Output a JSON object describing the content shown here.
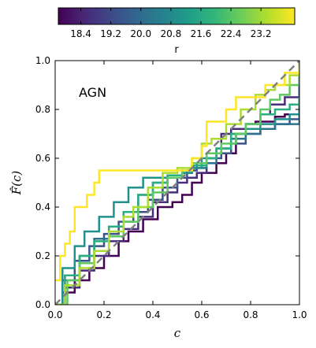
{
  "chart_data": {
    "type": "line",
    "annotation": "AGN",
    "xlabel": "c",
    "ylabel": "F̂(c)",
    "xlim": [
      0.0,
      1.0
    ],
    "ylim": [
      0.0,
      1.0
    ],
    "xticks": [
      "0.0",
      "0.2",
      "0.4",
      "0.6",
      "0.8",
      "1.0"
    ],
    "yticks": [
      "0.0",
      "0.2",
      "0.4",
      "0.6",
      "0.8",
      "1.0"
    ],
    "grid": false,
    "reference_line": {
      "style": "dashed",
      "color": "#808080",
      "x": [
        0,
        1
      ],
      "y": [
        0,
        1
      ]
    },
    "colorbar": {
      "label": "r",
      "colormap": "viridis",
      "location": "top",
      "range": [
        17.8,
        24.1
      ],
      "ticks": [
        "18.4",
        "19.2",
        "20.0",
        "20.8",
        "21.6",
        "22.4",
        "23.2"
      ],
      "colors": [
        "#440154",
        "#482878",
        "#3e4989",
        "#31688e",
        "#26828e",
        "#1f9e89",
        "#35b779",
        "#6ece58",
        "#b5de2b",
        "#fde725"
      ]
    },
    "series": [
      {
        "r": 18.0,
        "color": "#440154",
        "x": [
          0,
          0.03,
          0.08,
          0.14,
          0.2,
          0.26,
          0.3,
          0.36,
          0.42,
          0.48,
          0.52,
          0.56,
          0.6,
          0.66,
          0.7,
          0.74,
          0.78,
          0.82,
          0.86,
          0.9,
          0.94,
          1.0
        ],
        "y": [
          0,
          0.05,
          0.1,
          0.15,
          0.2,
          0.26,
          0.3,
          0.35,
          0.4,
          0.42,
          0.45,
          0.5,
          0.54,
          0.58,
          0.62,
          0.7,
          0.74,
          0.75,
          0.75,
          0.77,
          0.78,
          1.0
        ]
      },
      {
        "r": 18.6,
        "color": "#472d7b",
        "x": [
          0,
          0.04,
          0.1,
          0.16,
          0.22,
          0.28,
          0.34,
          0.4,
          0.46,
          0.5,
          0.54,
          0.58,
          0.62,
          0.68,
          0.72,
          0.78,
          0.84,
          0.88,
          0.94,
          1.0
        ],
        "y": [
          0,
          0.07,
          0.14,
          0.2,
          0.26,
          0.31,
          0.36,
          0.42,
          0.46,
          0.5,
          0.52,
          0.54,
          0.62,
          0.7,
          0.72,
          0.74,
          0.78,
          0.82,
          0.85,
          1.0
        ]
      },
      {
        "r": 19.3,
        "color": "#3b528b",
        "x": [
          0,
          0.03,
          0.08,
          0.14,
          0.2,
          0.26,
          0.32,
          0.38,
          0.44,
          0.5,
          0.54,
          0.58,
          0.62,
          0.68,
          0.72,
          0.78,
          0.84,
          0.9,
          0.96,
          1.0
        ],
        "y": [
          0,
          0.1,
          0.18,
          0.24,
          0.29,
          0.34,
          0.38,
          0.43,
          0.48,
          0.52,
          0.55,
          0.58,
          0.6,
          0.62,
          0.66,
          0.7,
          0.72,
          0.74,
          0.76,
          1.0
        ]
      },
      {
        "r": 20.1,
        "color": "#2c728e",
        "x": [
          0,
          0.04,
          0.1,
          0.16,
          0.22,
          0.28,
          0.34,
          0.4,
          0.46,
          0.52,
          0.56,
          0.62,
          0.66,
          0.72,
          0.78,
          0.84,
          0.9,
          0.96,
          1.0
        ],
        "y": [
          0,
          0.12,
          0.2,
          0.27,
          0.32,
          0.38,
          0.45,
          0.5,
          0.52,
          0.54,
          0.56,
          0.58,
          0.64,
          0.68,
          0.7,
          0.72,
          0.74,
          0.74,
          0.95
        ]
      },
      {
        "r": 20.9,
        "color": "#21918c",
        "x": [
          0,
          0.03,
          0.08,
          0.12,
          0.18,
          0.24,
          0.3,
          0.36,
          0.4,
          0.46,
          0.52,
          0.56,
          0.6,
          0.66,
          0.72,
          0.78,
          0.84,
          0.9,
          0.96,
          1.0
        ],
        "y": [
          0,
          0.15,
          0.24,
          0.3,
          0.36,
          0.42,
          0.48,
          0.52,
          0.52,
          0.53,
          0.54,
          0.56,
          0.6,
          0.64,
          0.7,
          0.72,
          0.74,
          0.76,
          0.78,
          0.82
        ]
      },
      {
        "r": 21.6,
        "color": "#28ae80",
        "x": [
          0,
          0.04,
          0.1,
          0.16,
          0.22,
          0.28,
          0.34,
          0.4,
          0.46,
          0.52,
          0.56,
          0.62,
          0.66,
          0.72,
          0.78,
          0.84,
          0.9,
          0.96,
          1.0
        ],
        "y": [
          0,
          0.12,
          0.2,
          0.26,
          0.32,
          0.38,
          0.45,
          0.5,
          0.53,
          0.55,
          0.57,
          0.6,
          0.64,
          0.7,
          0.74,
          0.78,
          0.8,
          0.82,
          0.85
        ]
      },
      {
        "r": 22.3,
        "color": "#5ec962",
        "x": [
          0,
          0.05,
          0.1,
          0.16,
          0.22,
          0.28,
          0.34,
          0.4,
          0.46,
          0.52,
          0.56,
          0.62,
          0.68,
          0.74,
          0.78,
          0.84,
          0.88,
          0.92,
          0.96,
          1.0
        ],
        "y": [
          0,
          0.1,
          0.17,
          0.22,
          0.28,
          0.34,
          0.4,
          0.46,
          0.52,
          0.55,
          0.58,
          0.62,
          0.66,
          0.7,
          0.74,
          0.8,
          0.84,
          0.86,
          0.9,
          0.98
        ]
      },
      {
        "r": 23.0,
        "color": "#addc30",
        "x": [
          0,
          0.04,
          0.1,
          0.16,
          0.22,
          0.28,
          0.32,
          0.38,
          0.44,
          0.5,
          0.56,
          0.6,
          0.64,
          0.7,
          0.76,
          0.82,
          0.86,
          0.9,
          0.96,
          1.0
        ],
        "y": [
          0,
          0.08,
          0.15,
          0.22,
          0.3,
          0.36,
          0.4,
          0.48,
          0.54,
          0.56,
          0.6,
          0.66,
          0.68,
          0.74,
          0.8,
          0.86,
          0.88,
          0.9,
          0.94,
          0.97
        ]
      },
      {
        "r": 23.8,
        "color": "#fde725",
        "x": [
          0,
          0.02,
          0.04,
          0.06,
          0.08,
          0.1,
          0.13,
          0.16,
          0.18,
          0.2,
          0.24,
          0.3,
          0.36,
          0.42,
          0.48,
          0.54,
          0.56,
          0.6,
          0.62,
          0.64,
          0.7,
          0.74,
          0.78,
          0.82,
          0.86,
          0.9,
          0.94,
          0.98,
          1.0
        ],
        "y": [
          0.1,
          0.2,
          0.25,
          0.3,
          0.4,
          0.4,
          0.45,
          0.5,
          0.55,
          0.55,
          0.55,
          0.55,
          0.55,
          0.55,
          0.55,
          0.55,
          0.6,
          0.65,
          0.75,
          0.75,
          0.8,
          0.85,
          0.85,
          0.85,
          0.9,
          0.9,
          0.95,
          0.95,
          1.0
        ]
      }
    ]
  }
}
